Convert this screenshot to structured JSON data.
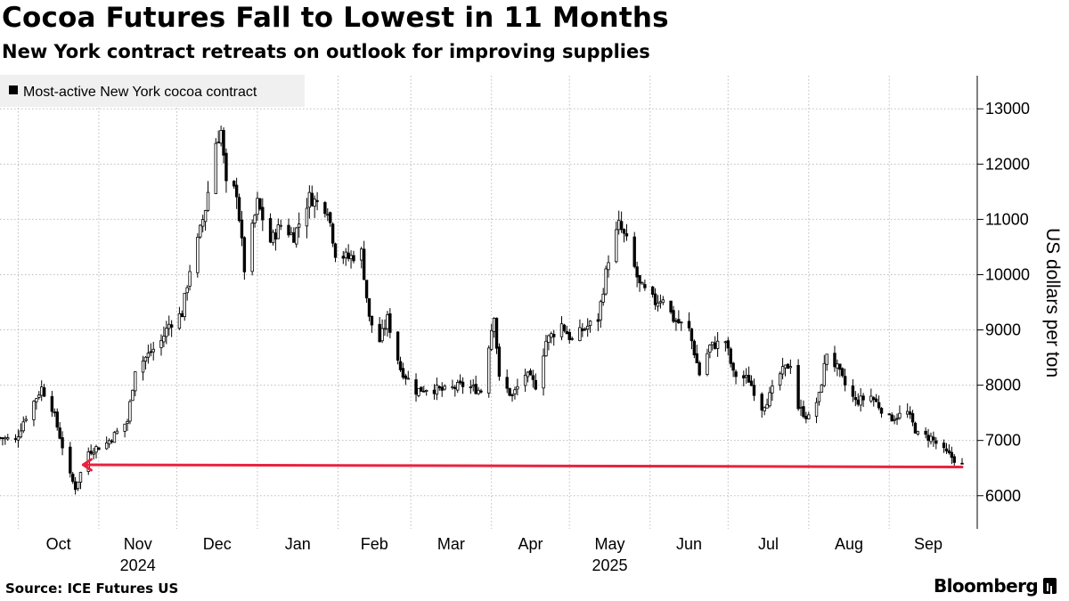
{
  "title": "Cocoa Futures Fall to Lowest in 11 Months",
  "subtitle": "New York contract retreats on outlook for improving supplies",
  "source": "Source: ICE Futures US",
  "brand": "Bloomberg",
  "colors": {
    "candle": "#000000",
    "arrow": "#e8233f",
    "grid": "#bdbdbd",
    "legend_bg": "#f0f0f0"
  },
  "chart_data": {
    "type": "candlestick",
    "legend": [
      "Most-active New York cocoa contract"
    ],
    "ylabel": "US dollars per ton",
    "ylim": [
      5400,
      13600
    ],
    "yticks": [
      6000,
      7000,
      8000,
      9000,
      10000,
      11000,
      12000,
      13000
    ],
    "ytick_labels": [
      "6000",
      "7000",
      "8000",
      "9000",
      "10000",
      "11000",
      "12000",
      "13000"
    ],
    "x_range": [
      "2024-09-24",
      "2025-09-29"
    ],
    "months": [
      {
        "label": "Oct",
        "date": "2024-10-01",
        "year": ""
      },
      {
        "label": "Nov",
        "date": "2024-11-01",
        "year": "2024"
      },
      {
        "label": "Dec",
        "date": "2024-12-01",
        "year": ""
      },
      {
        "label": "Jan",
        "date": "2025-01-01",
        "year": ""
      },
      {
        "label": "Feb",
        "date": "2025-02-01",
        "year": ""
      },
      {
        "label": "Mar",
        "date": "2025-03-01",
        "year": ""
      },
      {
        "label": "Apr",
        "date": "2025-04-01",
        "year": ""
      },
      {
        "label": "May",
        "date": "2025-05-01",
        "year": "2025"
      },
      {
        "label": "Jun",
        "date": "2025-06-01",
        "year": ""
      },
      {
        "label": "Jul",
        "date": "2025-07-01",
        "year": ""
      },
      {
        "label": "Aug",
        "date": "2025-08-01",
        "year": ""
      },
      {
        "label": "Sep",
        "date": "2025-09-01",
        "year": ""
      }
    ],
    "close_path": [
      [
        "2024-09-24",
        7050
      ],
      [
        "2024-09-30",
        7000
      ],
      [
        "2024-10-03",
        7350
      ],
      [
        "2024-10-07",
        7700
      ],
      [
        "2024-10-10",
        7950
      ],
      [
        "2024-10-14",
        7600
      ],
      [
        "2024-10-18",
        6900
      ],
      [
        "2024-10-21",
        6350
      ],
      [
        "2024-10-23",
        6150
      ],
      [
        "2024-10-28",
        6800
      ],
      [
        "2024-11-04",
        6950
      ],
      [
        "2024-11-07",
        7100
      ],
      [
        "2024-11-12",
        7350
      ],
      [
        "2024-11-15",
        8300
      ],
      [
        "2024-11-20",
        8550
      ],
      [
        "2024-11-25",
        8800
      ],
      [
        "2024-11-28",
        9100
      ],
      [
        "2024-12-03",
        9300
      ],
      [
        "2024-12-06",
        10100
      ],
      [
        "2024-12-09",
        10600
      ],
      [
        "2024-12-12",
        11200
      ],
      [
        "2024-12-16",
        12400
      ],
      [
        "2024-12-18",
        12600
      ],
      [
        "2024-12-20",
        11600
      ],
      [
        "2024-12-24",
        11500
      ],
      [
        "2024-12-27",
        10100
      ],
      [
        "2025-01-01",
        11300
      ],
      [
        "2025-01-06",
        10600
      ],
      [
        "2025-01-10",
        10900
      ],
      [
        "2025-01-15",
        10700
      ],
      [
        "2025-01-21",
        11400
      ],
      [
        "2025-01-24",
        11300
      ],
      [
        "2025-01-28",
        11200
      ],
      [
        "2025-01-31",
        10400
      ],
      [
        "2025-02-05",
        10300
      ],
      [
        "2025-02-10",
        10400
      ],
      [
        "2025-02-13",
        9200
      ],
      [
        "2025-02-17",
        8800
      ],
      [
        "2025-02-20",
        9200
      ],
      [
        "2025-02-25",
        8300
      ],
      [
        "2025-03-03",
        7900
      ],
      [
        "2025-03-07",
        7950
      ],
      [
        "2025-03-14",
        7900
      ],
      [
        "2025-03-21",
        8000
      ],
      [
        "2025-03-28",
        7900
      ],
      [
        "2025-04-02",
        9300
      ],
      [
        "2025-04-04",
        8100
      ],
      [
        "2025-04-09",
        7800
      ],
      [
        "2025-04-14",
        8200
      ],
      [
        "2025-04-18",
        8000
      ],
      [
        "2025-04-22",
        8800
      ],
      [
        "2025-04-28",
        9100
      ],
      [
        "2025-05-02",
        8800
      ],
      [
        "2025-05-06",
        9000
      ],
      [
        "2025-05-12",
        9200
      ],
      [
        "2025-05-16",
        10300
      ],
      [
        "2025-05-20",
        10900
      ],
      [
        "2025-05-23",
        10600
      ],
      [
        "2025-05-28",
        9800
      ],
      [
        "2025-06-03",
        9500
      ],
      [
        "2025-06-06",
        9600
      ],
      [
        "2025-06-10",
        9200
      ],
      [
        "2025-06-16",
        9000
      ],
      [
        "2025-06-20",
        8200
      ],
      [
        "2025-06-24",
        8700
      ],
      [
        "2025-06-30",
        8800
      ],
      [
        "2025-07-03",
        8200
      ],
      [
        "2025-07-09",
        8100
      ],
      [
        "2025-07-14",
        7600
      ],
      [
        "2025-07-17",
        7800
      ],
      [
        "2025-07-21",
        8200
      ],
      [
        "2025-07-25",
        8400
      ],
      [
        "2025-07-28",
        7600
      ],
      [
        "2025-08-01",
        7400
      ],
      [
        "2025-08-05",
        7800
      ],
      [
        "2025-08-08",
        8600
      ],
      [
        "2025-08-12",
        8300
      ],
      [
        "2025-08-15",
        8000
      ],
      [
        "2025-08-19",
        7700
      ],
      [
        "2025-08-25",
        7800
      ],
      [
        "2025-09-01",
        7400
      ],
      [
        "2025-09-08",
        7500
      ],
      [
        "2025-09-12",
        7100
      ],
      [
        "2025-09-17",
        7050
      ],
      [
        "2025-09-22",
        6800
      ],
      [
        "2025-09-25",
        6700
      ],
      [
        "2025-09-29",
        6550
      ]
    ],
    "annotation": {
      "type": "arrow",
      "value": 6550,
      "from_date": "2025-09-29",
      "to_date": "2024-10-26",
      "y_from": 6520,
      "y_to": 6560,
      "note": "red arrow back to previous low"
    }
  }
}
